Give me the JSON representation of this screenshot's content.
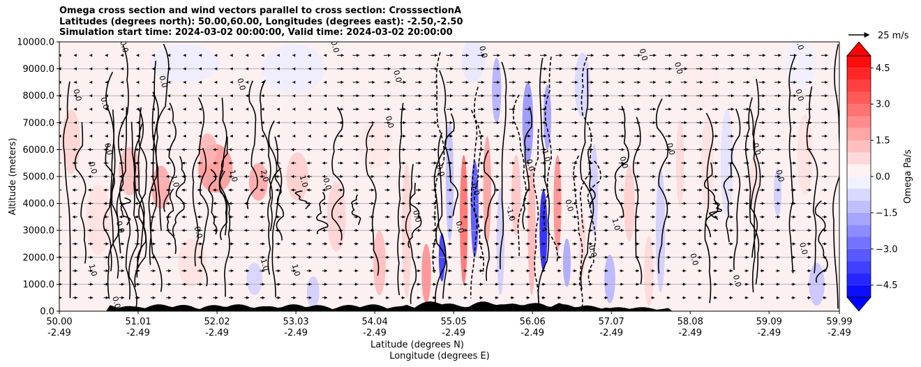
{
  "chart_data": {
    "type": "heatmap",
    "title_lines": [
      "Omega cross section and wind vectors parallel to cross section: CrosssectionA",
      "Latitudes (degrees north): 50.00,60.00, Longitudes (degrees east): -2.50,-2.50",
      "Simulation start time: 2024-03-02 00:00:00, Valid time: 2024-03-02 20:00:00"
    ],
    "ylabel": "Altitude (meters)",
    "xlabel_lines": [
      "Latitude (degrees N)",
      "Longitude (degrees E)"
    ],
    "xlim": [
      50.0,
      59.99
    ],
    "ylim": [
      0,
      10000
    ],
    "x_ticks": [
      {
        "value": 50.0,
        "lat": "50.00",
        "lon": "-2.49"
      },
      {
        "value": 51.01,
        "lat": "51.01",
        "lon": "-2.49"
      },
      {
        "value": 52.02,
        "lat": "52.02",
        "lon": "-2.49"
      },
      {
        "value": 53.03,
        "lat": "53.03",
        "lon": "-2.49"
      },
      {
        "value": 54.04,
        "lat": "54.04",
        "lon": "-2.49"
      },
      {
        "value": 55.05,
        "lat": "55.05",
        "lon": "-2.49"
      },
      {
        "value": 56.06,
        "lat": "56.06",
        "lon": "-2.49"
      },
      {
        "value": 57.07,
        "lat": "57.07",
        "lon": "-2.49"
      },
      {
        "value": 58.08,
        "lat": "58.08",
        "lon": "-2.49"
      },
      {
        "value": 59.09,
        "lat": "59.09",
        "lon": "-2.49"
      },
      {
        "value": 59.99,
        "lat": "59.99",
        "lon": "-2.49"
      }
    ],
    "y_ticks": [
      {
        "value": 0,
        "label": "0.0"
      },
      {
        "value": 1000,
        "label": "1000.0"
      },
      {
        "value": 2000,
        "label": "2000.0"
      },
      {
        "value": 3000,
        "label": "3000.0"
      },
      {
        "value": 4000,
        "label": "4000.0"
      },
      {
        "value": 5000,
        "label": "5000.0"
      },
      {
        "value": 6000,
        "label": "6000.0"
      },
      {
        "value": 7000,
        "label": "7000.0"
      },
      {
        "value": 8000,
        "label": "8000.0"
      },
      {
        "value": 9000,
        "label": "9000.0"
      },
      {
        "value": 10000,
        "label": "10000.0"
      }
    ],
    "grid": "horizontal",
    "colorbar": {
      "label": "Omega Pa/s",
      "range": [
        -5.0,
        5.0
      ],
      "ticks": [
        {
          "value": 4.5,
          "label": "4.5"
        },
        {
          "value": 3.0,
          "label": "3.0"
        },
        {
          "value": 1.5,
          "label": "1.5"
        },
        {
          "value": 0.0,
          "label": "0.0"
        },
        {
          "value": -1.5,
          "label": "−1.5"
        },
        {
          "value": -3.0,
          "label": "−3.0"
        },
        {
          "value": -4.5,
          "label": "−4.5"
        }
      ],
      "extend": "both",
      "positive_color": "#ff0000",
      "negative_color": "#0000ff"
    },
    "quiver_key": {
      "label": "25 m/s",
      "speed": 25
    },
    "contour_labels": [
      {
        "lat": 50.8,
        "alt": 9800,
        "text": "0.0"
      },
      {
        "lat": 50.2,
        "alt": 8000,
        "text": "0.0"
      },
      {
        "lat": 50.55,
        "alt": 7700,
        "text": "0.0"
      },
      {
        "lat": 50.6,
        "alt": 6000,
        "text": "0.0"
      },
      {
        "lat": 50.4,
        "alt": 5300,
        "text": "0.0"
      },
      {
        "lat": 50.75,
        "alt": 3100,
        "text": "0.0"
      },
      {
        "lat": 50.4,
        "alt": 1500,
        "text": "1.0"
      },
      {
        "lat": 50.7,
        "alt": 300,
        "text": "0.0"
      },
      {
        "lat": 51.3,
        "alt": 8500,
        "text": "0.0"
      },
      {
        "lat": 51.45,
        "alt": 4800,
        "text": "1.0"
      },
      {
        "lat": 52.2,
        "alt": 5000,
        "text": "1.0"
      },
      {
        "lat": 51.75,
        "alt": 2900,
        "text": "0.0"
      },
      {
        "lat": 52.6,
        "alt": 5000,
        "text": "2.0"
      },
      {
        "lat": 52.3,
        "alt": 8400,
        "text": "0.0"
      },
      {
        "lat": 53.1,
        "alt": 4800,
        "text": "1.0"
      },
      {
        "lat": 53.4,
        "alt": 4700,
        "text": "0.0"
      },
      {
        "lat": 53.0,
        "alt": 1500,
        "text": "1.0"
      },
      {
        "lat": 52.6,
        "alt": 1700,
        "text": "1.0"
      },
      {
        "lat": 53.5,
        "alt": 9800,
        "text": "0.0"
      },
      {
        "lat": 54.3,
        "alt": 8700,
        "text": "0.0"
      },
      {
        "lat": 54.2,
        "alt": 7000,
        "text": "0.0"
      },
      {
        "lat": 54.85,
        "alt": 5200,
        "text": "0.0"
      },
      {
        "lat": 54.55,
        "alt": 3500,
        "text": "0.0"
      },
      {
        "lat": 55.4,
        "alt": 9600,
        "text": "0.0"
      },
      {
        "lat": 55.3,
        "alt": 4500,
        "text": "0.0"
      },
      {
        "lat": 55.1,
        "alt": 3100,
        "text": "0.0"
      },
      {
        "lat": 55.75,
        "alt": 3600,
        "text": "-1.0"
      },
      {
        "lat": 56.0,
        "alt": 5400,
        "text": "0.0"
      },
      {
        "lat": 56.2,
        "alt": 5800,
        "text": "-1.0"
      },
      {
        "lat": 56.5,
        "alt": 3900,
        "text": "0.0"
      },
      {
        "lat": 56.8,
        "alt": 2200,
        "text": "0.0"
      },
      {
        "lat": 57.2,
        "alt": 5500,
        "text": "0.0"
      },
      {
        "lat": 57.1,
        "alt": 3200,
        "text": "1.0"
      },
      {
        "lat": 57.8,
        "alt": 6000,
        "text": "0.0"
      },
      {
        "lat": 57.45,
        "alt": 9500,
        "text": "0.0"
      },
      {
        "lat": 57.9,
        "alt": 9000,
        "text": "0.0"
      },
      {
        "lat": 58.9,
        "alt": 6000,
        "text": "0.0"
      },
      {
        "lat": 59.2,
        "alt": 5000,
        "text": "0.0"
      },
      {
        "lat": 59.45,
        "alt": 8000,
        "text": "0.0"
      },
      {
        "lat": 59.45,
        "alt": 9900,
        "text": "0.0"
      },
      {
        "lat": 59.5,
        "alt": 2300,
        "text": "0.0"
      },
      {
        "lat": 58.65,
        "alt": 1100,
        "text": "0.0"
      },
      {
        "lat": 58.1,
        "alt": 1900,
        "text": "0.0"
      }
    ]
  }
}
